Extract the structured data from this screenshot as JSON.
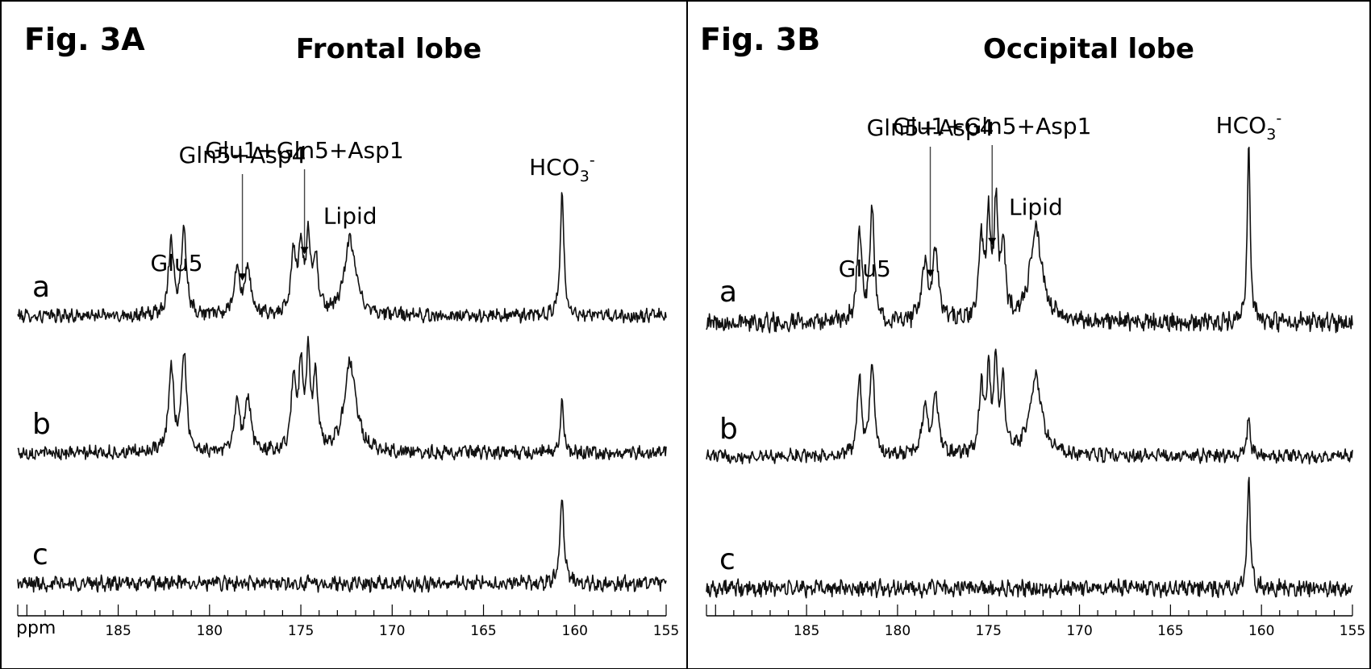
{
  "chart_data": [
    {
      "type": "line",
      "panel_label": "Fig. 3A",
      "title": "Frontal lobe",
      "xaxis": {
        "unit_label": "ppm",
        "range": [
          155,
          190.5
        ],
        "reversed": true,
        "tick_labels": [
          185,
          180,
          175,
          170,
          165,
          160,
          155
        ]
      },
      "grid": false,
      "series": [
        {
          "name": "a",
          "baseline_noise": 0.045,
          "peaks": [
            {
              "ppm": 182.1,
              "height": 0.6,
              "width": 0.16
            },
            {
              "ppm": 181.4,
              "height": 0.7,
              "width": 0.16
            },
            {
              "ppm": 178.5,
              "height": 0.36,
              "width": 0.18
            },
            {
              "ppm": 177.9,
              "height": 0.38,
              "width": 0.18
            },
            {
              "ppm": 175.4,
              "height": 0.5,
              "width": 0.15
            },
            {
              "ppm": 175.0,
              "height": 0.56,
              "width": 0.13
            },
            {
              "ppm": 174.6,
              "height": 0.6,
              "width": 0.13
            },
            {
              "ppm": 174.2,
              "height": 0.45,
              "width": 0.15
            },
            {
              "ppm": 172.3,
              "height": 0.6,
              "width": 0.38
            },
            {
              "ppm": 160.7,
              "height": 1.0,
              "width": 0.12
            }
          ]
        },
        {
          "name": "b",
          "baseline_noise": 0.045,
          "peaks": [
            {
              "ppm": 182.1,
              "height": 0.68,
              "width": 0.16
            },
            {
              "ppm": 181.4,
              "height": 0.8,
              "width": 0.16
            },
            {
              "ppm": 178.5,
              "height": 0.38,
              "width": 0.18
            },
            {
              "ppm": 177.9,
              "height": 0.44,
              "width": 0.18
            },
            {
              "ppm": 175.4,
              "height": 0.58,
              "width": 0.15
            },
            {
              "ppm": 175.0,
              "height": 0.66,
              "width": 0.13
            },
            {
              "ppm": 174.6,
              "height": 0.72,
              "width": 0.13
            },
            {
              "ppm": 174.2,
              "height": 0.55,
              "width": 0.15
            },
            {
              "ppm": 172.3,
              "height": 0.72,
              "width": 0.38
            },
            {
              "ppm": 160.7,
              "height": 0.4,
              "width": 0.12
            }
          ]
        },
        {
          "name": "c",
          "baseline_noise": 0.05,
          "peaks": [
            {
              "ppm": 160.7,
              "height": 0.72,
              "width": 0.12
            }
          ]
        }
      ],
      "annotations": [
        {
          "text": "Glu5",
          "ppm": 181.8,
          "arrow": false
        },
        {
          "text": "Gln5+Asp4",
          "ppm": 178.2,
          "arrow": true
        },
        {
          "text": "Glu1+Gln5+Asp1",
          "ppm": 174.8,
          "arrow": true
        },
        {
          "text": "Lipid",
          "ppm": 172.3,
          "arrow": false
        },
        {
          "text": "HCO",
          "subscript": "3",
          "superscript": "-",
          "ppm": 160.7,
          "arrow": false
        }
      ]
    },
    {
      "type": "line",
      "panel_label": "Fig. 3B",
      "title": "Occipital lobe",
      "xaxis": {
        "unit_label": "",
        "range": [
          155,
          190.5
        ],
        "reversed": true,
        "tick_labels": [
          185,
          180,
          175,
          170,
          165,
          160,
          155
        ]
      },
      "grid": false,
      "series": [
        {
          "name": "a",
          "baseline_noise": 0.045,
          "peaks": [
            {
              "ppm": 182.1,
              "height": 0.55,
              "width": 0.14
            },
            {
              "ppm": 181.4,
              "height": 0.65,
              "width": 0.14
            },
            {
              "ppm": 178.5,
              "height": 0.35,
              "width": 0.18
            },
            {
              "ppm": 177.9,
              "height": 0.4,
              "width": 0.18
            },
            {
              "ppm": 175.4,
              "height": 0.48,
              "width": 0.14
            },
            {
              "ppm": 175.0,
              "height": 0.58,
              "width": 0.12
            },
            {
              "ppm": 174.6,
              "height": 0.65,
              "width": 0.12
            },
            {
              "ppm": 174.2,
              "height": 0.45,
              "width": 0.14
            },
            {
              "ppm": 172.4,
              "height": 0.52,
              "width": 0.4
            },
            {
              "ppm": 160.7,
              "height": 1.0,
              "width": 0.1
            }
          ]
        },
        {
          "name": "b",
          "baseline_noise": 0.045,
          "peaks": [
            {
              "ppm": 182.1,
              "height": 0.63,
              "width": 0.14
            },
            {
              "ppm": 181.4,
              "height": 0.75,
              "width": 0.14
            },
            {
              "ppm": 178.5,
              "height": 0.4,
              "width": 0.18
            },
            {
              "ppm": 177.9,
              "height": 0.46,
              "width": 0.18
            },
            {
              "ppm": 175.4,
              "height": 0.55,
              "width": 0.14
            },
            {
              "ppm": 175.0,
              "height": 0.64,
              "width": 0.12
            },
            {
              "ppm": 174.6,
              "height": 0.72,
              "width": 0.12
            },
            {
              "ppm": 174.2,
              "height": 0.55,
              "width": 0.14
            },
            {
              "ppm": 172.4,
              "height": 0.62,
              "width": 0.4
            },
            {
              "ppm": 160.7,
              "height": 0.32,
              "width": 0.1
            }
          ]
        },
        {
          "name": "c",
          "baseline_noise": 0.05,
          "peaks": [
            {
              "ppm": 160.7,
              "height": 0.8,
              "width": 0.1
            }
          ]
        }
      ],
      "annotations": [
        {
          "text": "Glu5",
          "ppm": 181.8,
          "arrow": false
        },
        {
          "text": "Gln5+Asp4",
          "ppm": 178.2,
          "arrow": true
        },
        {
          "text": "Glu1+Gln5+Asp1",
          "ppm": 174.8,
          "arrow": true
        },
        {
          "text": "Lipid",
          "ppm": 172.4,
          "arrow": false
        },
        {
          "text": "HCO",
          "subscript": "3",
          "superscript": "-",
          "ppm": 160.7,
          "arrow": false
        }
      ]
    }
  ]
}
